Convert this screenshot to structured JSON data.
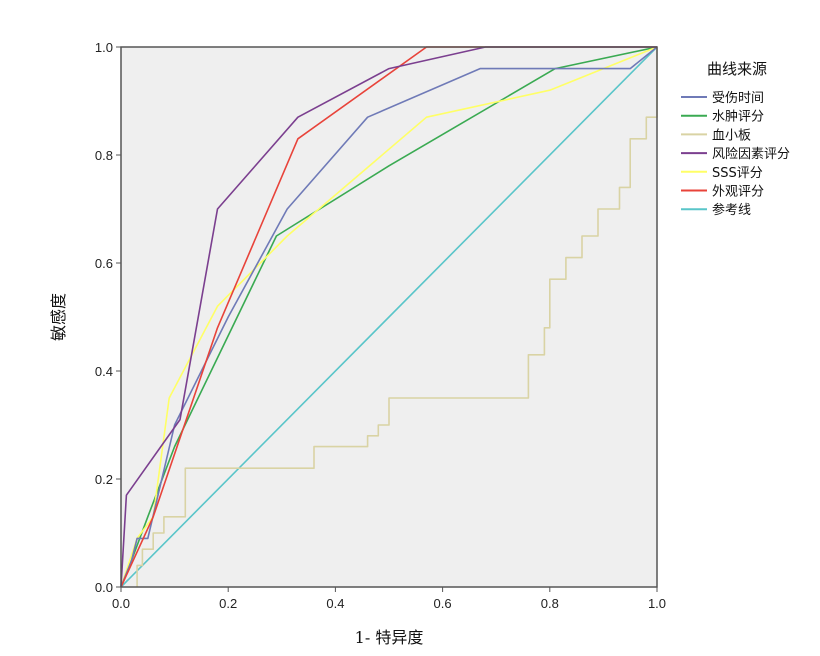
{
  "chart_data": {
    "type": "line",
    "xlabel": "1- 特异度",
    "ylabel": "敏感度",
    "xlim": [
      0,
      1
    ],
    "ylim": [
      0,
      1
    ],
    "x_ticks": [
      "0.0",
      "0.2",
      "0.4",
      "0.6",
      "0.8",
      "1.0"
    ],
    "y_ticks": [
      "0.0",
      "0.2",
      "0.4",
      "0.6",
      "0.8",
      "1.0"
    ],
    "grid": false,
    "legend": {
      "title": "曲线来源",
      "placement": "right"
    },
    "series": [
      {
        "name": "受伤时间",
        "color": "#6f7ab7",
        "x": [
          0,
          0.02,
          0.03,
          0.05,
          0.1,
          0.2,
          0.31,
          0.46,
          0.67,
          0.95,
          1
        ],
        "y": [
          0,
          0.05,
          0.09,
          0.09,
          0.3,
          0.5,
          0.7,
          0.87,
          0.96,
          0.96,
          1
        ]
      },
      {
        "name": "水肿评分",
        "color": "#3aaa52",
        "x": [
          0,
          0.02,
          0.05,
          0.1,
          0.29,
          0.5,
          0.81,
          1
        ],
        "y": [
          0,
          0.05,
          0.13,
          0.26,
          0.65,
          0.78,
          0.96,
          1
        ]
      },
      {
        "name": "血小板",
        "color": "#d9d3a4",
        "x": [
          0.03,
          0.03,
          0.04,
          0.04,
          0.06,
          0.06,
          0.08,
          0.08,
          0.12,
          0.12,
          0.36,
          0.36,
          0.46,
          0.46,
          0.48,
          0.48,
          0.5,
          0.5,
          0.76,
          0.76,
          0.79,
          0.79,
          0.8,
          0.8,
          0.83,
          0.83,
          0.86,
          0.86,
          0.89,
          0.89,
          0.93,
          0.93,
          0.95,
          0.95,
          0.98,
          0.98,
          1,
          1
        ],
        "y": [
          0,
          0.04,
          0.04,
          0.07,
          0.07,
          0.1,
          0.1,
          0.13,
          0.13,
          0.22,
          0.22,
          0.26,
          0.26,
          0.28,
          0.28,
          0.3,
          0.3,
          0.35,
          0.35,
          0.43,
          0.43,
          0.48,
          0.48,
          0.57,
          0.57,
          0.61,
          0.61,
          0.65,
          0.65,
          0.7,
          0.7,
          0.74,
          0.74,
          0.83,
          0.83,
          0.87,
          0.87,
          1
        ]
      },
      {
        "name": "风险因素评分",
        "color": "#7b3f8f",
        "x": [
          0,
          0.01,
          0.11,
          0.18,
          0.33,
          0.5,
          0.68,
          0.92,
          1
        ],
        "y": [
          0,
          0.17,
          0.31,
          0.7,
          0.87,
          0.96,
          1,
          1,
          1
        ]
      },
      {
        "name": "SSS评分",
        "color": "#ffff66",
        "x": [
          0,
          0.03,
          0.06,
          0.09,
          0.18,
          0.31,
          0.57,
          0.8,
          1
        ],
        "y": [
          0,
          0.09,
          0.13,
          0.35,
          0.52,
          0.65,
          0.87,
          0.92,
          1
        ]
      },
      {
        "name": "外观评分",
        "color": "#e8433a",
        "x": [
          0,
          0.06,
          0.18,
          0.33,
          0.57,
          0.6,
          1
        ],
        "y": [
          0,
          0.13,
          0.48,
          0.83,
          1,
          1,
          1
        ]
      },
      {
        "name": "参考线",
        "color": "#59c5c9",
        "x": [
          0,
          1
        ],
        "y": [
          0,
          1
        ]
      }
    ]
  }
}
